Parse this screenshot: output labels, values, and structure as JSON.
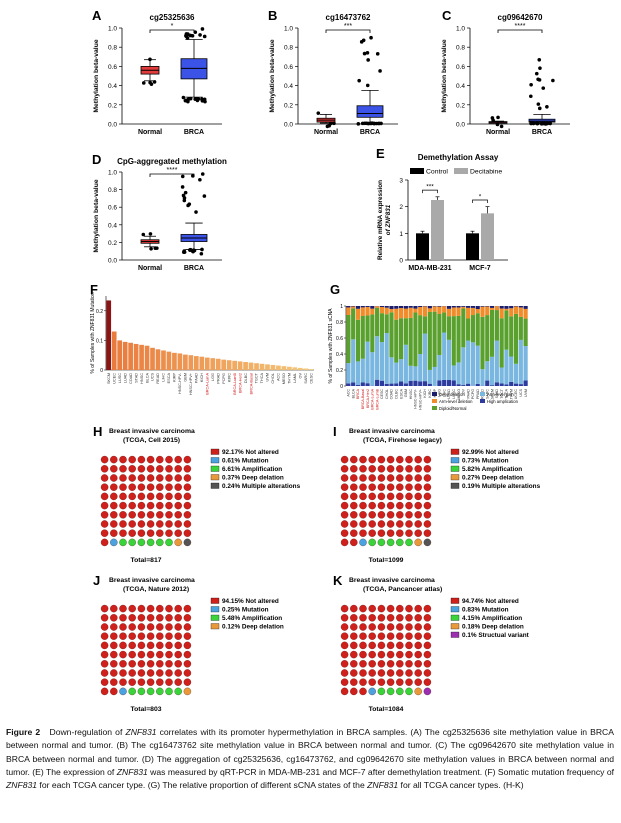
{
  "figure": {
    "panelA": {
      "letter": "A",
      "title": "cg25325636",
      "ylabel": "Methylation beta-value",
      "categories": [
        "Normal",
        "BRCA"
      ],
      "yticks": [
        "0.0",
        "0.2",
        "0.4",
        "0.6",
        "0.8",
        "1.0"
      ],
      "sig": "*"
    },
    "panelB": {
      "letter": "B",
      "title": "cg16473762",
      "ylabel": "Methylation beta-value",
      "categories": [
        "Normal",
        "BRCA"
      ],
      "yticks": [
        "0.0",
        "0.2",
        "0.4",
        "0.6",
        "0.8",
        "1.0"
      ],
      "sig": "***"
    },
    "panelC": {
      "letter": "C",
      "title": "cg09642670",
      "ylabel": "Methylation beta-value",
      "categories": [
        "Normal",
        "BRCA"
      ],
      "yticks": [
        "0.0",
        "0.2",
        "0.4",
        "0.6",
        "0.8",
        "1.0"
      ],
      "sig": "****"
    },
    "panelD": {
      "letter": "D",
      "title": "CpG-aggregated methylation",
      "ylabel": "Methylation beta-value",
      "categories": [
        "Normal",
        "BRCA"
      ],
      "yticks": [
        "0.0",
        "0.2",
        "0.4",
        "0.6",
        "0.8",
        "1.0"
      ],
      "sig": "****"
    },
    "panelE": {
      "letter": "E",
      "title": "Demethylation Assay",
      "ylabel_line1": "Relative mRNA expression",
      "ylabel_line2": "of ZNF831",
      "legend": [
        "Control",
        "Decitabine"
      ],
      "categories": [
        "MDA-MB-231",
        "MCF-7"
      ],
      "yticks": [
        "0",
        "1",
        "2",
        "3"
      ],
      "sig": [
        "***",
        "*"
      ]
    },
    "panelF": {
      "letter": "F",
      "ylabel": "% of Samples with ZNF831 Mutation",
      "yticks": [
        "0",
        "0.1",
        "0.2"
      ]
    },
    "panelG": {
      "letter": "G",
      "ylabel": "% of Samples with ZNF831 sCNA",
      "yticks": [
        "0",
        "0.2",
        "0.4",
        "0.6",
        "0.8",
        "1"
      ],
      "legend": [
        "Deep deletion",
        "Arm-level deletion",
        "Diploid/Normal",
        "Arm-level gain",
        "High amplication"
      ]
    },
    "pies": [
      {
        "letter": "H",
        "title1": "Breast invasive carcinoma",
        "title2": "(TCGA, Cell 2015)",
        "total": "Total=817",
        "legend": [
          "92.17%  Not altered",
          "0.61%  Mutation",
          "6.61%  Amplification",
          "0.37%  Deep delation",
          "0.24%  Multiple alterations"
        ]
      },
      {
        "letter": "I",
        "title1": "Breast invasive carcinoma",
        "title2": "(TCGA, Firehose legacy)",
        "total": "Total=1099",
        "legend": [
          "92.99%  Not altered",
          "0.73%  Mutation",
          "5.82%  Amplification",
          "0.27%  Deep delation",
          "0.19%  Multiple alterations"
        ]
      },
      {
        "letter": "J",
        "title1": "Breast invasive carcinoma",
        "title2": "(TCGA, Nature 2012)",
        "total": "Total=803",
        "legend": [
          "94.15%  Not altered",
          "0.25%  Mutation",
          "5.48%  Amplification",
          "0.12%  Deep delation"
        ]
      },
      {
        "letter": "K",
        "title1": "Breast invasive carcinoma",
        "title2": "(TCGA, Pancancer atlas)",
        "total": "Total=1084",
        "legend": [
          "94.74%  Not altered",
          "0.83%  Mutation",
          "4.15%  Amplification",
          "0.18%  Deep delation",
          "0.1%  Structual variant"
        ]
      }
    ],
    "colors": {
      "normal_box": "#e23b3b",
      "brca_box": "#3c53e8",
      "not_altered": "#d0201b",
      "mutation": "#4aa3df",
      "amplification": "#39d33a",
      "deep_deletion": "#e8993a",
      "multiple": "#555555",
      "structural": "#9b2fb0",
      "control_bar": "#000000",
      "decitabine_bar": "#a9a9a9"
    }
  },
  "chart_data": [
    {
      "type": "box",
      "title": "cg25325636",
      "categories": [
        "Normal",
        "BRCA"
      ],
      "ylim": [
        0,
        1
      ],
      "series": [
        {
          "median": 0.56,
          "q1": 0.52,
          "q3": 0.6,
          "whisker_low": 0.45,
          "whisker_high": 0.67
        },
        {
          "median": 0.58,
          "q1": 0.47,
          "q3": 0.68,
          "whisker_low": 0.28,
          "whisker_high": 0.88
        }
      ]
    },
    {
      "type": "box",
      "title": "cg16473762",
      "categories": [
        "Normal",
        "BRCA"
      ],
      "ylim": [
        0,
        1
      ],
      "series": [
        {
          "median": 0.04,
          "q1": 0.02,
          "q3": 0.06,
          "whisker_low": 0.01,
          "whisker_high": 0.1
        },
        {
          "median": 0.11,
          "q1": 0.07,
          "q3": 0.19,
          "whisker_low": 0.01,
          "whisker_high": 0.35
        }
      ]
    },
    {
      "type": "box",
      "title": "cg09642670",
      "categories": [
        "Normal",
        "BRCA"
      ],
      "ylim": [
        0,
        1
      ],
      "series": [
        {
          "median": 0.02,
          "q1": 0.015,
          "q3": 0.025,
          "whisker_low": 0.01,
          "whisker_high": 0.03
        },
        {
          "median": 0.03,
          "q1": 0.02,
          "q3": 0.05,
          "whisker_low": 0.01,
          "whisker_high": 0.1
        }
      ]
    },
    {
      "type": "box",
      "title": "CpG-aggregated methylation",
      "categories": [
        "Normal",
        "BRCA"
      ],
      "ylim": [
        0,
        1
      ],
      "series": [
        {
          "median": 0.21,
          "q1": 0.19,
          "q3": 0.23,
          "whisker_low": 0.15,
          "whisker_high": 0.27
        },
        {
          "median": 0.25,
          "q1": 0.21,
          "q3": 0.29,
          "whisker_low": 0.12,
          "whisker_high": 0.42
        }
      ]
    },
    {
      "type": "bar",
      "title": "Demethylation Assay",
      "categories": [
        "MDA-MB-231",
        "MCF-7"
      ],
      "ylim": [
        0,
        3
      ],
      "series": [
        {
          "name": "Control",
          "values": [
            1.0,
            1.0
          ]
        },
        {
          "name": "Decitabine",
          "values": [
            2.25,
            1.75
          ]
        }
      ]
    },
    {
      "type": "bar",
      "categories": [
        "SKCM",
        "UCEC",
        "LUSC",
        "LUAD",
        "COAD",
        "STAD",
        "HNSC",
        "BLCA",
        "UCS",
        "READ",
        "LIHC",
        "ESCA",
        "KIRP",
        "HNSC-HPV-",
        "GBM",
        "HNSC-HPV+",
        "PAAD",
        "KICH",
        "BRCA-LumA",
        "LGG",
        "PRAD",
        "PCPG",
        "KIRC",
        "BRCA-LumB",
        "BRCA-Her2",
        "DLBC",
        "BRCA-Basal",
        "TGCT",
        "THCA",
        "UVM",
        "CHOL",
        "ACC",
        "MESO",
        "THYM",
        "LAML",
        "OV",
        "SARC",
        "CESC"
      ],
      "values": [
        0.235,
        0.13,
        0.1,
        0.095,
        0.092,
        0.088,
        0.085,
        0.082,
        0.075,
        0.07,
        0.066,
        0.062,
        0.058,
        0.056,
        0.052,
        0.05,
        0.047,
        0.045,
        0.042,
        0.04,
        0.038,
        0.035,
        0.033,
        0.031,
        0.029,
        0.027,
        0.025,
        0.023,
        0.021,
        0.019,
        0.017,
        0.015,
        0.013,
        0.011,
        0.009,
        0.007,
        0.005,
        0.003
      ],
      "ylim": [
        0,
        0.25
      ]
    },
    {
      "type": "bar",
      "categories": [
        "ACC",
        "BLCA",
        "BRCA",
        "BRCA-Basal",
        "BRCA-Her2",
        "BRCA-LumA",
        "BRCA-LumB",
        "CESC",
        "CHOL",
        "COAD",
        "DLBC",
        "ESCA",
        "GBM",
        "HNSC",
        "HNSC-HPV-",
        "HNSC-HPV+",
        "KICH",
        "KIRC",
        "KIRP",
        "LGG",
        "LIHC",
        "LUAD",
        "LUSC",
        "MESO",
        "OV",
        "PAAD",
        "PCPG",
        "PRAD",
        "READ",
        "SARC",
        "SKCM",
        "STAD",
        "TGCT",
        "THCA",
        "THYM",
        "UCEC",
        "UCS",
        "UVM"
      ],
      "ylim": [
        0,
        1
      ]
    }
  ],
  "caption": {
    "label": "Figure 2",
    "text": "Down-regulation of ZNF831 correlates with its promoter hypermethylation in BRCA samples. (A) The cg25325636 site methylation value in BRCA between normal and tumor. (B) The cg16473762 site methylation value in BRCA between normal and tumor. (C) The cg09642670 site methylation value in BRCA between normal and tumor. (D) The aggregation of cg25325636, cg16473762, and cg09642670 site methylation values in BRCA between normal and tumor. (E) The expression of ZNF831 was measured by qRT-PCR in MDA-MB-231 and MCF-7 after demethylation treatment. (F) Somatic mutation frequency of ZNF831 for each TCGA cancer type. (G) The relative proportion of different sCNA states of the ZNF831 for all TCGA cancer types. (H-K)"
  }
}
